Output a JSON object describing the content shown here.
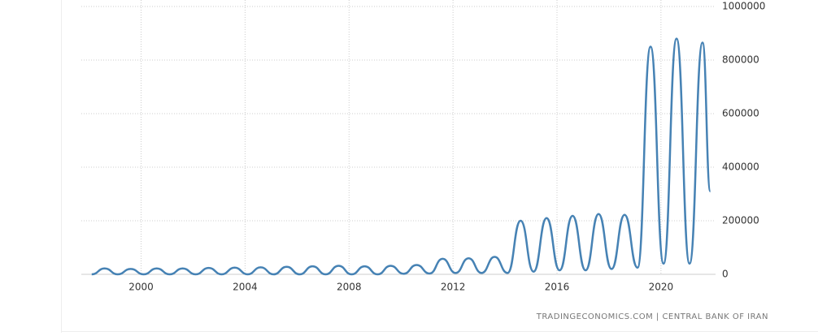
{
  "chart_data": {
    "type": "line",
    "source": "TRADINGECONOMICS.COM | CENTRAL BANK OF IRAN",
    "x": [
      1998.1,
      1998.6,
      1999.1,
      1999.6,
      2000.1,
      2000.6,
      2001.1,
      2001.6,
      2002.1,
      2002.6,
      2003.1,
      2003.6,
      2004.1,
      2004.6,
      2005.1,
      2005.6,
      2006.1,
      2006.6,
      2007.1,
      2007.6,
      2008.1,
      2008.6,
      2009.1,
      2009.6,
      2010.1,
      2010.6,
      2011.1,
      2011.6,
      2012.1,
      2012.6,
      2013.1,
      2013.6,
      2014.1,
      2014.6,
      2015.1,
      2015.6,
      2016.1,
      2016.6,
      2017.1,
      2017.6,
      2018.1,
      2018.6,
      2019.1,
      2019.6,
      2020.1,
      2020.6,
      2021.1,
      2021.6,
      2021.9
    ],
    "series": [
      {
        "color": "#4682b4",
        "values": [
          0,
          22000,
          0,
          20000,
          0,
          22000,
          0,
          22000,
          0,
          24000,
          0,
          25000,
          0,
          26000,
          0,
          28000,
          0,
          30000,
          0,
          32000,
          0,
          30000,
          0,
          32000,
          2000,
          35000,
          3000,
          58000,
          5000,
          60000,
          5000,
          65000,
          5000,
          200000,
          10000,
          210000,
          15000,
          218000,
          15000,
          225000,
          20000,
          222000,
          25000,
          850000,
          40000,
          880000,
          40000,
          865000,
          310000
        ]
      }
    ],
    "xlim": [
      1997.7,
      2022.1
    ],
    "xticks": [
      2000,
      2004,
      2008,
      2012,
      2016,
      2020
    ],
    "ylim": [
      0,
      1000000
    ],
    "yticks": [
      0,
      200000,
      400000,
      600000,
      800000,
      1000000
    ],
    "grid": true
  }
}
